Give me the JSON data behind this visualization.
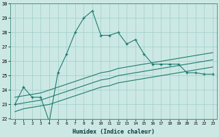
{
  "xlabel": "Humidex (Indice chaleur)",
  "hours": [
    0,
    1,
    2,
    3,
    4,
    5,
    6,
    7,
    8,
    9,
    10,
    11,
    12,
    13,
    14,
    15,
    16,
    17,
    18,
    19,
    20,
    21,
    22,
    23
  ],
  "humidex_main": [
    23.0,
    24.2,
    23.5,
    23.5,
    21.8,
    25.2,
    26.5,
    28.0,
    29.0,
    29.5,
    27.8,
    27.8,
    28.0,
    27.2,
    27.5,
    26.5,
    25.8,
    25.8,
    25.8,
    25.8,
    25.2,
    25.2,
    25.1,
    25.1
  ],
  "line_upper": [
    23.5,
    23.6,
    23.7,
    23.8,
    24.0,
    24.2,
    24.4,
    24.6,
    24.8,
    25.0,
    25.2,
    25.3,
    25.5,
    25.6,
    25.7,
    25.8,
    25.9,
    26.0,
    26.1,
    26.2,
    26.3,
    26.4,
    26.5,
    26.6
  ],
  "line_lower": [
    22.5,
    22.7,
    22.8,
    22.9,
    23.0,
    23.2,
    23.4,
    23.6,
    23.8,
    24.0,
    24.2,
    24.3,
    24.5,
    24.6,
    24.7,
    24.8,
    24.9,
    25.0,
    25.1,
    25.2,
    25.3,
    25.4,
    25.5,
    25.6
  ],
  "line_mid": [
    23.0,
    23.1,
    23.2,
    23.3,
    23.5,
    23.7,
    23.9,
    24.1,
    24.3,
    24.5,
    24.7,
    24.8,
    25.0,
    25.1,
    25.2,
    25.3,
    25.4,
    25.5,
    25.6,
    25.7,
    25.8,
    25.9,
    26.0,
    26.1
  ],
  "line_color": "#1a7a6e",
  "bg_color": "#cce8e4",
  "grid_color": "#9ecec8",
  "ylim": [
    22,
    30
  ],
  "xlim_min": -0.5,
  "xlim_max": 23.5
}
